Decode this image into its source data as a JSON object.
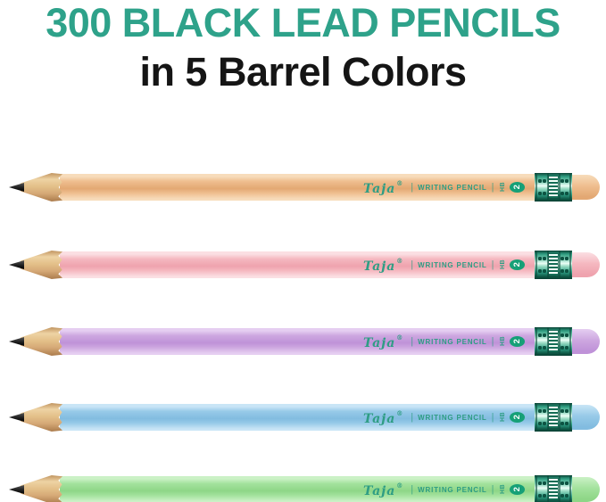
{
  "header": {
    "title": "300 BLACK LEAD PENCILS",
    "subtitle": "in 5 Barrel Colors",
    "title_color": "#2EA28A",
    "subtitle_color": "#151515"
  },
  "branding": {
    "brand": "Taja",
    "registered": "®",
    "separator": "|",
    "product": "WRITING PENCIL",
    "grade": "HB",
    "grade_number": "2",
    "print_color": "#2E9D84",
    "badge_color": "#16A077",
    "badge_text_color": "#FFFFFF"
  },
  "pencil_parts": {
    "lead_color": "#1B1B1B",
    "wood_light": "#EED3A4",
    "wood_dark": "#AB7C4C",
    "ferrule_teal": "#2E9E84",
    "ferrule_dark": "#0D5543",
    "ferrule_highlight": "#ECFFF7"
  },
  "pencils": [
    {
      "name": "peach",
      "barrel": "#EFBE8F",
      "light": "#F7DCBB",
      "shade": "#E3A873"
    },
    {
      "name": "pink",
      "barrel": "#F5B8C0",
      "light": "#FBDFE3",
      "shade": "#EFA3AE"
    },
    {
      "name": "lavender",
      "barrel": "#CDA7E0",
      "light": "#E5CEF1",
      "shade": "#BF92D8"
    },
    {
      "name": "blue",
      "barrel": "#97CAE8",
      "light": "#C9E5F6",
      "shade": "#82BCE0"
    },
    {
      "name": "green",
      "barrel": "#A3E29D",
      "light": "#CBF1C6",
      "shade": "#8ED687"
    }
  ]
}
